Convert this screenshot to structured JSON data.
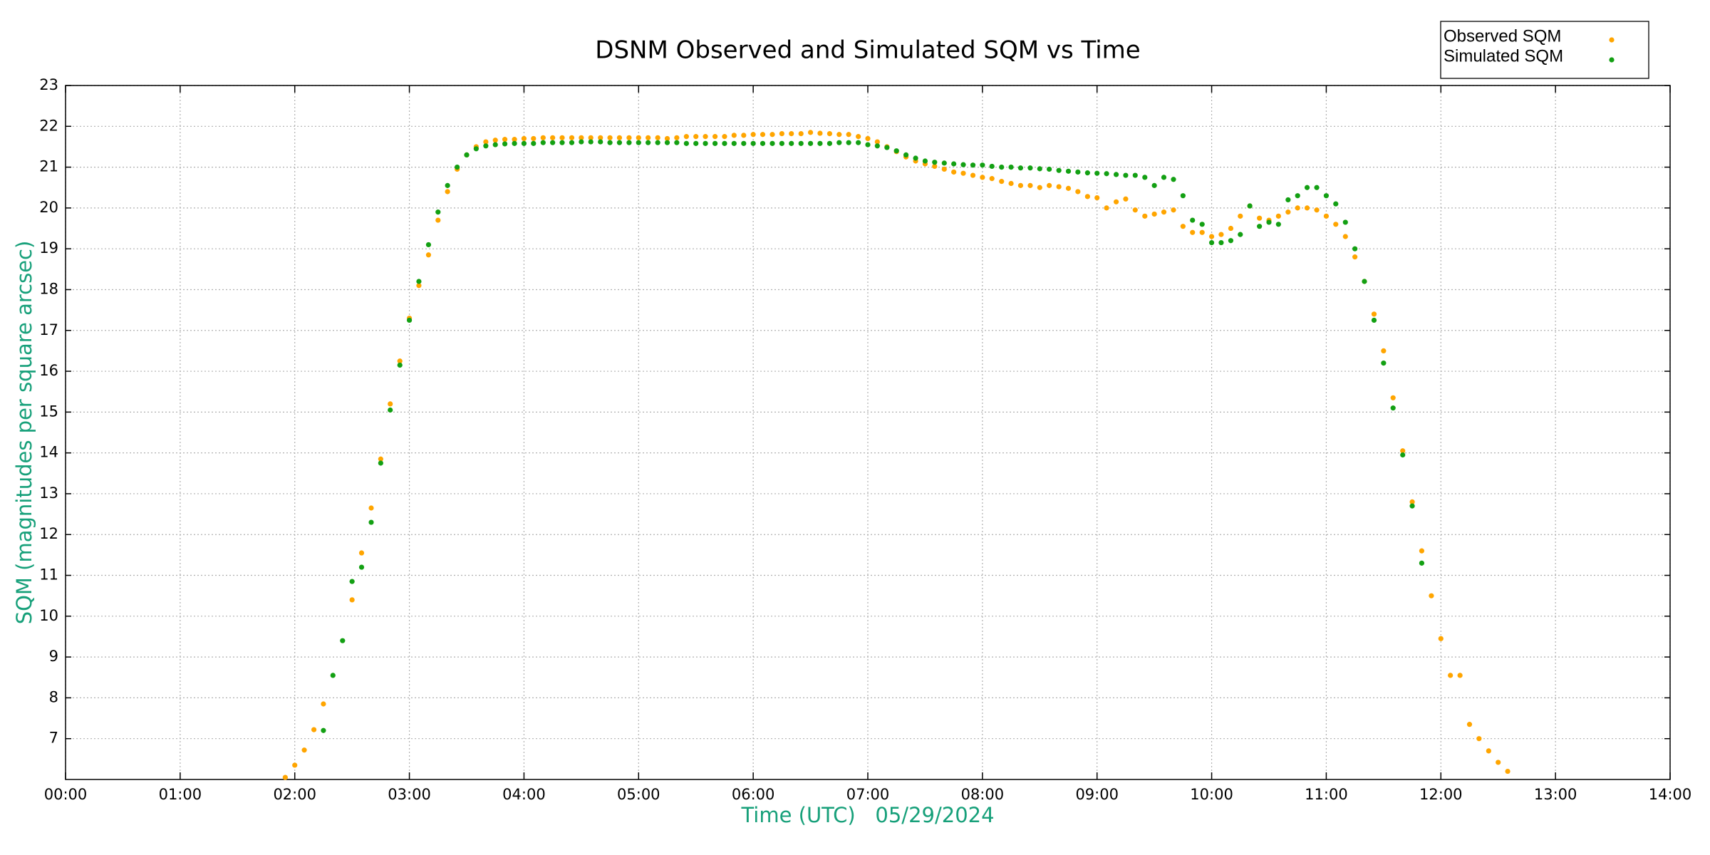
{
  "chart_data": {
    "type": "scatter",
    "title": "DSNM Observed and Simulated SQM vs Time",
    "xlabel": "Time (UTC)   05/29/2024",
    "ylabel": "SQM (magnitudes per square arcsec)",
    "xlim": [
      0,
      14
    ],
    "ylim": [
      6,
      23
    ],
    "xticks": [
      {
        "value": 0,
        "label": "00:00"
      },
      {
        "value": 1,
        "label": "01:00"
      },
      {
        "value": 2,
        "label": "02:00"
      },
      {
        "value": 3,
        "label": "03:00"
      },
      {
        "value": 4,
        "label": "04:00"
      },
      {
        "value": 5,
        "label": "05:00"
      },
      {
        "value": 6,
        "label": "06:00"
      },
      {
        "value": 7,
        "label": "07:00"
      },
      {
        "value": 8,
        "label": "08:00"
      },
      {
        "value": 9,
        "label": "09:00"
      },
      {
        "value": 10,
        "label": "10:00"
      },
      {
        "value": 11,
        "label": "11:00"
      },
      {
        "value": 12,
        "label": "12:00"
      },
      {
        "value": 13,
        "label": "13:00"
      },
      {
        "value": 14,
        "label": "14:00"
      }
    ],
    "yticks": [
      7,
      8,
      9,
      10,
      11,
      12,
      13,
      14,
      15,
      16,
      17,
      18,
      19,
      20,
      21,
      22,
      23
    ],
    "grid": true,
    "legend": "upper right",
    "series": [
      {
        "name": "Observed SQM",
        "color": "#ffa500",
        "x": [
          1.917,
          2.0,
          2.083,
          2.167,
          2.25,
          2.5,
          2.583,
          2.667,
          2.75,
          2.833,
          2.917,
          3.0,
          3.083,
          3.167,
          3.25,
          3.333,
          3.417,
          3.5,
          3.583,
          3.667,
          3.75,
          3.833,
          3.917,
          4.0,
          4.083,
          4.167,
          4.25,
          4.333,
          4.417,
          4.5,
          4.583,
          4.667,
          4.75,
          4.833,
          4.917,
          5.0,
          5.083,
          5.167,
          5.25,
          5.333,
          5.417,
          5.5,
          5.583,
          5.667,
          5.75,
          5.833,
          5.917,
          6.0,
          6.083,
          6.167,
          6.25,
          6.333,
          6.417,
          6.5,
          6.583,
          6.667,
          6.75,
          6.833,
          6.917,
          7.0,
          7.083,
          7.167,
          7.25,
          7.333,
          7.417,
          7.5,
          7.583,
          7.667,
          7.75,
          7.833,
          7.917,
          8.0,
          8.083,
          8.167,
          8.25,
          8.333,
          8.417,
          8.5,
          8.583,
          8.667,
          8.75,
          8.833,
          8.917,
          9.0,
          9.083,
          9.167,
          9.25,
          9.333,
          9.417,
          9.5,
          9.583,
          9.667,
          9.75,
          9.833,
          9.917,
          10.0,
          10.083,
          10.167,
          10.25,
          10.333,
          10.417,
          10.5,
          10.583,
          10.667,
          10.75,
          10.833,
          10.917,
          11.0,
          11.083,
          11.167,
          11.25,
          11.333,
          11.417,
          11.5,
          11.583,
          11.667,
          11.75,
          11.833,
          11.917,
          12.0,
          12.083,
          12.167,
          12.25,
          12.333,
          12.417,
          12.5,
          12.583
        ],
        "values": [
          6.05,
          6.35,
          6.72,
          7.22,
          7.85,
          10.4,
          11.55,
          12.65,
          13.85,
          15.2,
          16.25,
          17.3,
          18.1,
          18.85,
          19.7,
          20.4,
          20.95,
          21.3,
          21.5,
          21.62,
          21.66,
          21.68,
          21.68,
          21.7,
          21.7,
          21.72,
          21.72,
          21.72,
          21.72,
          21.72,
          21.72,
          21.72,
          21.72,
          21.72,
          21.72,
          21.72,
          21.72,
          21.72,
          21.7,
          21.72,
          21.75,
          21.75,
          21.75,
          21.75,
          21.75,
          21.78,
          21.78,
          21.8,
          21.8,
          21.8,
          21.82,
          21.82,
          21.82,
          21.85,
          21.83,
          21.82,
          21.8,
          21.8,
          21.75,
          21.7,
          21.62,
          21.5,
          21.38,
          21.25,
          21.15,
          21.08,
          21.02,
          20.95,
          20.88,
          20.85,
          20.8,
          20.75,
          20.72,
          20.65,
          20.6,
          20.55,
          20.55,
          20.5,
          20.55,
          20.52,
          20.48,
          20.4,
          20.28,
          20.25,
          20.0,
          20.15,
          20.22,
          19.95,
          19.8,
          19.85,
          19.9,
          19.95,
          19.55,
          19.4,
          19.4,
          19.3,
          19.35,
          19.5,
          19.8,
          20.05,
          19.75,
          19.7,
          19.8,
          19.9,
          20.0,
          20.0,
          19.95,
          19.8,
          19.6,
          19.3,
          18.8,
          18.2,
          17.4,
          16.5,
          15.35,
          14.05,
          12.8,
          11.6,
          10.5,
          9.45,
          8.55,
          8.55,
          7.35,
          7.0,
          6.7,
          6.42,
          6.2
        ]
      },
      {
        "name": "Simulated SQM",
        "color": "#13a013",
        "x": [
          2.25,
          2.333,
          2.417,
          2.5,
          2.583,
          2.667,
          2.75,
          2.833,
          2.917,
          3.0,
          3.083,
          3.167,
          3.25,
          3.333,
          3.417,
          3.5,
          3.583,
          3.667,
          3.75,
          3.833,
          3.917,
          4.0,
          4.083,
          4.167,
          4.25,
          4.333,
          4.417,
          4.5,
          4.583,
          4.667,
          4.75,
          4.833,
          4.917,
          5.0,
          5.083,
          5.167,
          5.25,
          5.333,
          5.417,
          5.5,
          5.583,
          5.667,
          5.75,
          5.833,
          5.917,
          6.0,
          6.083,
          6.167,
          6.25,
          6.333,
          6.417,
          6.5,
          6.583,
          6.667,
          6.75,
          6.833,
          6.917,
          7.0,
          7.083,
          7.167,
          7.25,
          7.333,
          7.417,
          7.5,
          7.583,
          7.667,
          7.75,
          7.833,
          7.917,
          8.0,
          8.083,
          8.167,
          8.25,
          8.333,
          8.417,
          8.5,
          8.583,
          8.667,
          8.75,
          8.833,
          8.917,
          9.0,
          9.083,
          9.167,
          9.25,
          9.333,
          9.417,
          9.5,
          9.583,
          9.667,
          9.75,
          9.833,
          9.917,
          10.0,
          10.083,
          10.167,
          10.25,
          10.333,
          10.417,
          10.5,
          10.583,
          10.667,
          10.75,
          10.833,
          10.917,
          11.0,
          11.083,
          11.167,
          11.25,
          11.333,
          11.417,
          11.5,
          11.583,
          11.667,
          11.75,
          11.833
        ],
        "values": [
          7.2,
          8.55,
          9.4,
          10.85,
          11.2,
          12.3,
          13.75,
          15.05,
          16.15,
          17.25,
          18.2,
          19.1,
          19.9,
          20.55,
          21.0,
          21.3,
          21.45,
          21.52,
          21.55,
          21.57,
          21.58,
          21.58,
          21.58,
          21.6,
          21.6,
          21.6,
          21.6,
          21.62,
          21.62,
          21.62,
          21.6,
          21.6,
          21.6,
          21.6,
          21.6,
          21.6,
          21.6,
          21.6,
          21.58,
          21.58,
          21.58,
          21.58,
          21.58,
          21.58,
          21.58,
          21.58,
          21.58,
          21.58,
          21.58,
          21.58,
          21.58,
          21.58,
          21.58,
          21.58,
          21.6,
          21.6,
          21.6,
          21.55,
          21.52,
          21.48,
          21.4,
          21.3,
          21.22,
          21.15,
          21.12,
          21.1,
          21.08,
          21.06,
          21.05,
          21.05,
          21.02,
          21.0,
          21.0,
          20.98,
          20.98,
          20.96,
          20.95,
          20.92,
          20.9,
          20.88,
          20.86,
          20.85,
          20.84,
          20.82,
          20.8,
          20.8,
          20.75,
          20.55,
          20.75,
          20.7,
          20.3,
          19.7,
          19.6,
          19.15,
          19.15,
          19.2,
          19.35,
          20.05,
          19.55,
          19.65,
          19.6,
          20.2,
          20.3,
          20.5,
          20.5,
          20.3,
          20.1,
          19.65,
          19.0,
          18.2,
          17.25,
          16.2,
          15.1,
          13.95,
          12.7,
          11.3
        ]
      }
    ]
  }
}
